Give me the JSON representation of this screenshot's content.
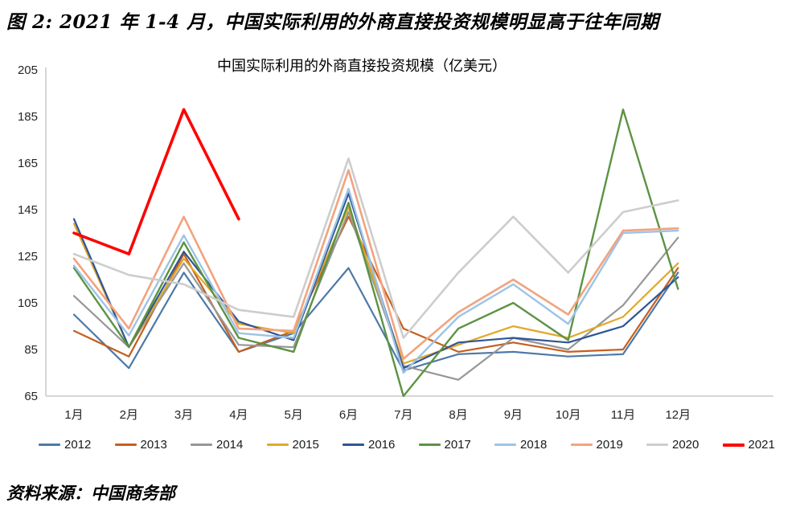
{
  "page": {
    "title": "图 2: 2021 年 1-4 月，中国实际利用的外商直接投资规模明显高于往年同期",
    "source": "资料来源：中国商务部"
  },
  "chart_data": {
    "type": "line",
    "title": "中国实际利用的外商直接投资规模（亿美元）",
    "categories": [
      "1月",
      "2月",
      "3月",
      "4月",
      "5月",
      "6月",
      "7月",
      "8月",
      "9月",
      "10月",
      "11月",
      "12月"
    ],
    "ylabel": "",
    "xlabel": "",
    "ylim": [
      65,
      205
    ],
    "y_ticks": [
      65,
      85,
      105,
      125,
      145,
      165,
      185,
      205
    ],
    "grid": false,
    "legend_position": "bottom",
    "axis_color": "#BFBFBF",
    "series": [
      {
        "name": "2012",
        "color": "#4E79A7",
        "width": 2.2,
        "values": [
          100,
          77,
          118,
          84,
          92,
          120,
          76,
          83,
          84,
          82,
          83,
          118
        ]
      },
      {
        "name": "2013",
        "color": "#C55F1E",
        "width": 2.2,
        "values": [
          93,
          82,
          126,
          84,
          93,
          142,
          94,
          84,
          88,
          84,
          85,
          120
        ]
      },
      {
        "name": "2014",
        "color": "#979797",
        "width": 2.2,
        "values": [
          108,
          86,
          122,
          87,
          86,
          144,
          78,
          72,
          90,
          85,
          104,
          133
        ]
      },
      {
        "name": "2015",
        "color": "#E2A82A",
        "width": 2.2,
        "values": [
          139,
          86,
          124,
          96,
          92,
          146,
          79,
          87,
          95,
          90,
          99,
          122
        ]
      },
      {
        "name": "2016",
        "color": "#2E5597",
        "width": 2.2,
        "values": [
          141,
          86,
          127,
          97,
          89,
          152,
          77,
          88,
          90,
          88,
          95,
          116
        ]
      },
      {
        "name": "2017",
        "color": "#5C9343",
        "width": 2.4,
        "values": [
          120,
          86,
          131,
          90,
          84,
          148,
          65,
          94,
          105,
          89,
          188,
          111
        ]
      },
      {
        "name": "2018",
        "color": "#9DC3E6",
        "width": 2.4,
        "values": [
          121,
          91,
          134,
          92,
          90,
          154,
          75,
          99,
          113,
          96,
          135,
          136
        ]
      },
      {
        "name": "2019",
        "color": "#F2A37E",
        "width": 2.6,
        "values": [
          124,
          94,
          142,
          94,
          93,
          162,
          81,
          101,
          115,
          100,
          136,
          137
        ]
      },
      {
        "name": "2020",
        "color": "#CDCDCD",
        "width": 2.6,
        "values": [
          126,
          117,
          113,
          102,
          99,
          167,
          90,
          118,
          142,
          118,
          144,
          149
        ]
      },
      {
        "name": "2021",
        "color": "#FF0000",
        "width": 3.6,
        "values": [
          135,
          126,
          188,
          141
        ]
      }
    ]
  }
}
